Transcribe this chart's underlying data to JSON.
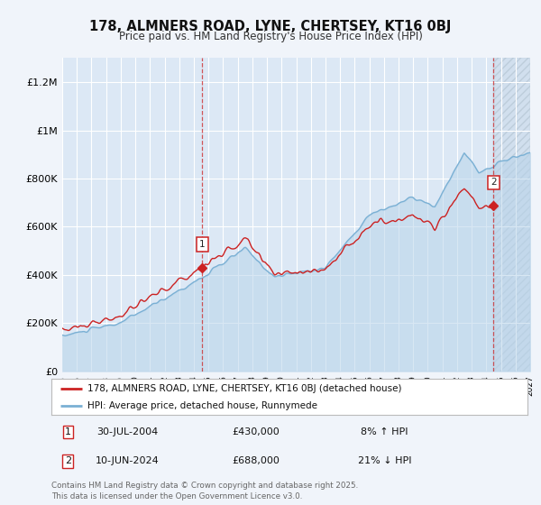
{
  "title": "178, ALMNERS ROAD, LYNE, CHERTSEY, KT16 0BJ",
  "subtitle": "Price paid vs. HM Land Registry's House Price Index (HPI)",
  "ylim": [
    0,
    1300000
  ],
  "yticks": [
    0,
    200000,
    400000,
    600000,
    800000,
    1000000,
    1200000
  ],
  "ytick_labels": [
    "£0",
    "£200K",
    "£400K",
    "£600K",
    "£800K",
    "£1M",
    "£1.2M"
  ],
  "background_color": "#f0f4fa",
  "plot_bg_color": "#dce8f5",
  "grid_color": "#ffffff",
  "hpi_color": "#7ab0d4",
  "property_color": "#cc2222",
  "transaction1_date": "30-JUL-2004",
  "transaction1_price": 430000,
  "transaction1_hpi_pct": "8% ↑ HPI",
  "transaction2_date": "10-JUN-2024",
  "transaction2_price": 688000,
  "transaction2_hpi_pct": "21% ↓ HPI",
  "legend_property": "178, ALMNERS ROAD, LYNE, CHERTSEY, KT16 0BJ (detached house)",
  "legend_hpi": "HPI: Average price, detached house, Runnymede",
  "footnote": "Contains HM Land Registry data © Crown copyright and database right 2025.\nThis data is licensed under the Open Government Licence v3.0.",
  "xmin": 1995.0,
  "xmax": 2027.0,
  "xticks": [
    1995,
    1996,
    1997,
    1998,
    1999,
    2000,
    2001,
    2002,
    2003,
    2004,
    2005,
    2006,
    2007,
    2008,
    2009,
    2010,
    2011,
    2012,
    2013,
    2014,
    2015,
    2016,
    2017,
    2018,
    2019,
    2020,
    2021,
    2022,
    2023,
    2024,
    2025,
    2026,
    2027
  ]
}
